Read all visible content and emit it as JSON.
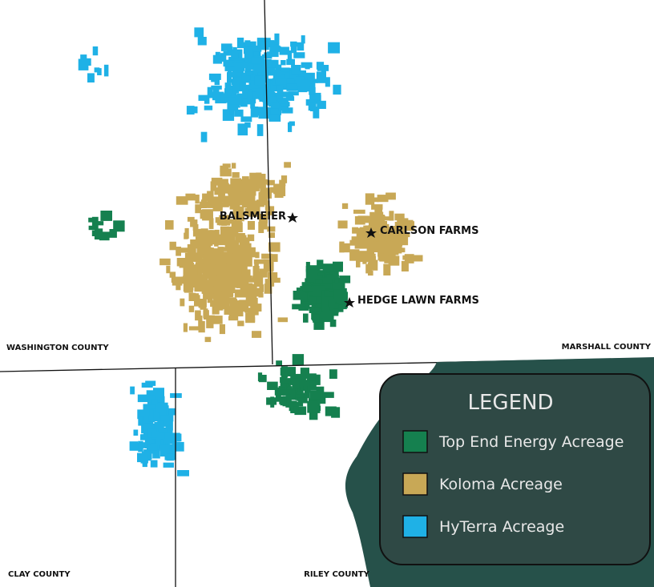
{
  "counties": [
    "WASHINGTON COUNTY",
    "MARSHALL COUNTY",
    "CLAY COUNTY",
    "RILEY COUNTY"
  ],
  "farms": [
    "BALSMEIER",
    "CARLSON FARMS",
    "HEDGE LAWN FARMS"
  ],
  "legend": {
    "title": "LEGEND",
    "items": [
      {
        "name": "Top End Energy Acreage",
        "color": "#15804f"
      },
      {
        "name": "Koloma Acreage",
        "color": "#c8a856"
      },
      {
        "name": "HyTerra Acreage",
        "color": "#1fb1e6"
      }
    ]
  }
}
